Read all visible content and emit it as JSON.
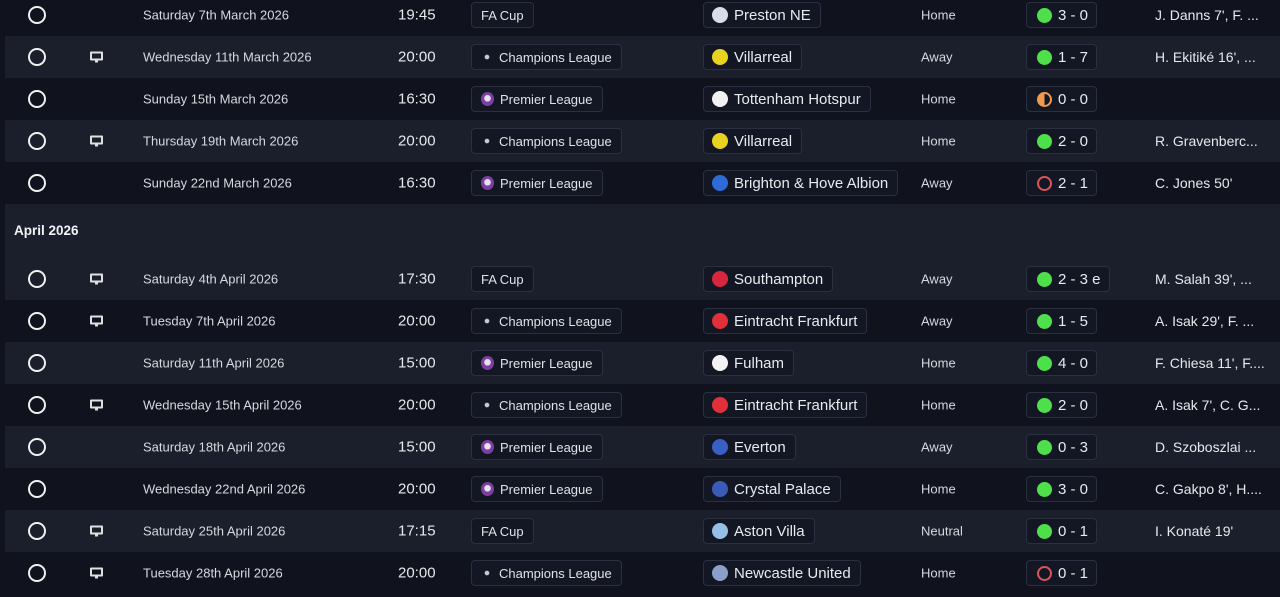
{
  "colors": {
    "win": "#4ee04a",
    "loss": "#e0525a",
    "draw": "#f19a4c",
    "background": "#10131e",
    "row_alt": "#1b1f2c"
  },
  "competitions": {
    "FA Cup": {
      "icon": "none"
    },
    "Champions League": {
      "icon": "champions-league-icon",
      "color": "#9aa0b0"
    },
    "Premier League": {
      "icon": "premier-league-lion-icon",
      "color": "#7b3fa0"
    }
  },
  "sections": [
    {
      "title": "",
      "fixtures": [
        {
          "date": "Saturday 7th March 2026",
          "tv": false,
          "time": "19:45",
          "competition": "FA Cup",
          "team": "Preston NE",
          "team_color": "#d8dce6",
          "venue": "Home",
          "result": "win",
          "score": "3 - 0",
          "scorers": "J. Danns 7', F. ..."
        },
        {
          "date": "Wednesday 11th March 2026",
          "tv": true,
          "time": "20:00",
          "competition": "Champions League",
          "team": "Villarreal",
          "team_color": "#e8d321",
          "venue": "Away",
          "result": "win",
          "score": "1 - 7",
          "scorers": "H. Ekitiké 16', ..."
        },
        {
          "date": "Sunday 15th March 2026",
          "tv": false,
          "time": "16:30",
          "competition": "Premier League",
          "team": "Tottenham Hotspur",
          "team_color": "#f0f0f0",
          "venue": "Home",
          "result": "draw",
          "score": "0 - 0",
          "scorers": ""
        },
        {
          "date": "Thursday 19th March 2026",
          "tv": true,
          "time": "20:00",
          "competition": "Champions League",
          "team": "Villarreal",
          "team_color": "#e8d321",
          "venue": "Home",
          "result": "win",
          "score": "2 - 0",
          "scorers": "R. Gravenberc..."
        },
        {
          "date": "Sunday 22nd March 2026",
          "tv": false,
          "time": "16:30",
          "competition": "Premier League",
          "team": "Brighton & Hove Albion",
          "team_color": "#2f6bd8",
          "venue": "Away",
          "result": "loss",
          "score": "2 - 1",
          "scorers": "C. Jones 50'"
        }
      ]
    },
    {
      "title": "April 2026",
      "fixtures": [
        {
          "date": "Saturday 4th April 2026",
          "tv": true,
          "time": "17:30",
          "competition": "FA Cup",
          "team": "Southampton",
          "team_color": "#d7263d",
          "venue": "Away",
          "result": "win",
          "score": "2 - 3 e",
          "scorers": "M. Salah 39', ..."
        },
        {
          "date": "Tuesday 7th April 2026",
          "tv": true,
          "time": "20:00",
          "competition": "Champions League",
          "team": "Eintracht Frankfurt",
          "team_color": "#e1303a",
          "venue": "Away",
          "result": "win",
          "score": "1 - 5",
          "scorers": "A. Isak 29', F. ..."
        },
        {
          "date": "Saturday 11th April 2026",
          "tv": false,
          "time": "15:00",
          "competition": "Premier League",
          "team": "Fulham",
          "team_color": "#f2f2f2",
          "venue": "Home",
          "result": "win",
          "score": "4 - 0",
          "scorers": "F. Chiesa 11', F...."
        },
        {
          "date": "Wednesday 15th April 2026",
          "tv": true,
          "time": "20:00",
          "competition": "Champions League",
          "team": "Eintracht Frankfurt",
          "team_color": "#e1303a",
          "venue": "Home",
          "result": "win",
          "score": "2 - 0",
          "scorers": "A. Isak 7', C. G..."
        },
        {
          "date": "Saturday 18th April 2026",
          "tv": false,
          "time": "15:00",
          "competition": "Premier League",
          "team": "Everton",
          "team_color": "#3a5fc4",
          "venue": "Away",
          "result": "win",
          "score": "0 - 3",
          "scorers": "D. Szoboszlai ..."
        },
        {
          "date": "Wednesday 22nd April 2026",
          "tv": false,
          "time": "20:00",
          "competition": "Premier League",
          "team": "Crystal Palace",
          "team_color": "#3b5bb8",
          "venue": "Home",
          "result": "win",
          "score": "3 - 0",
          "scorers": "C. Gakpo 8', H...."
        },
        {
          "date": "Saturday 25th April 2026",
          "tv": true,
          "time": "17:15",
          "competition": "FA Cup",
          "team": "Aston Villa",
          "team_color": "#95bfe5",
          "venue": "Neutral",
          "result": "win",
          "score": "0 - 1",
          "scorers": "I. Konaté 19'"
        },
        {
          "date": "Tuesday 28th April 2026",
          "tv": true,
          "time": "20:00",
          "competition": "Champions League",
          "team": "Newcastle United",
          "team_color": "#8aa0c8",
          "venue": "Home",
          "result": "loss",
          "score": "0 - 1",
          "scorers": ""
        }
      ]
    }
  ]
}
